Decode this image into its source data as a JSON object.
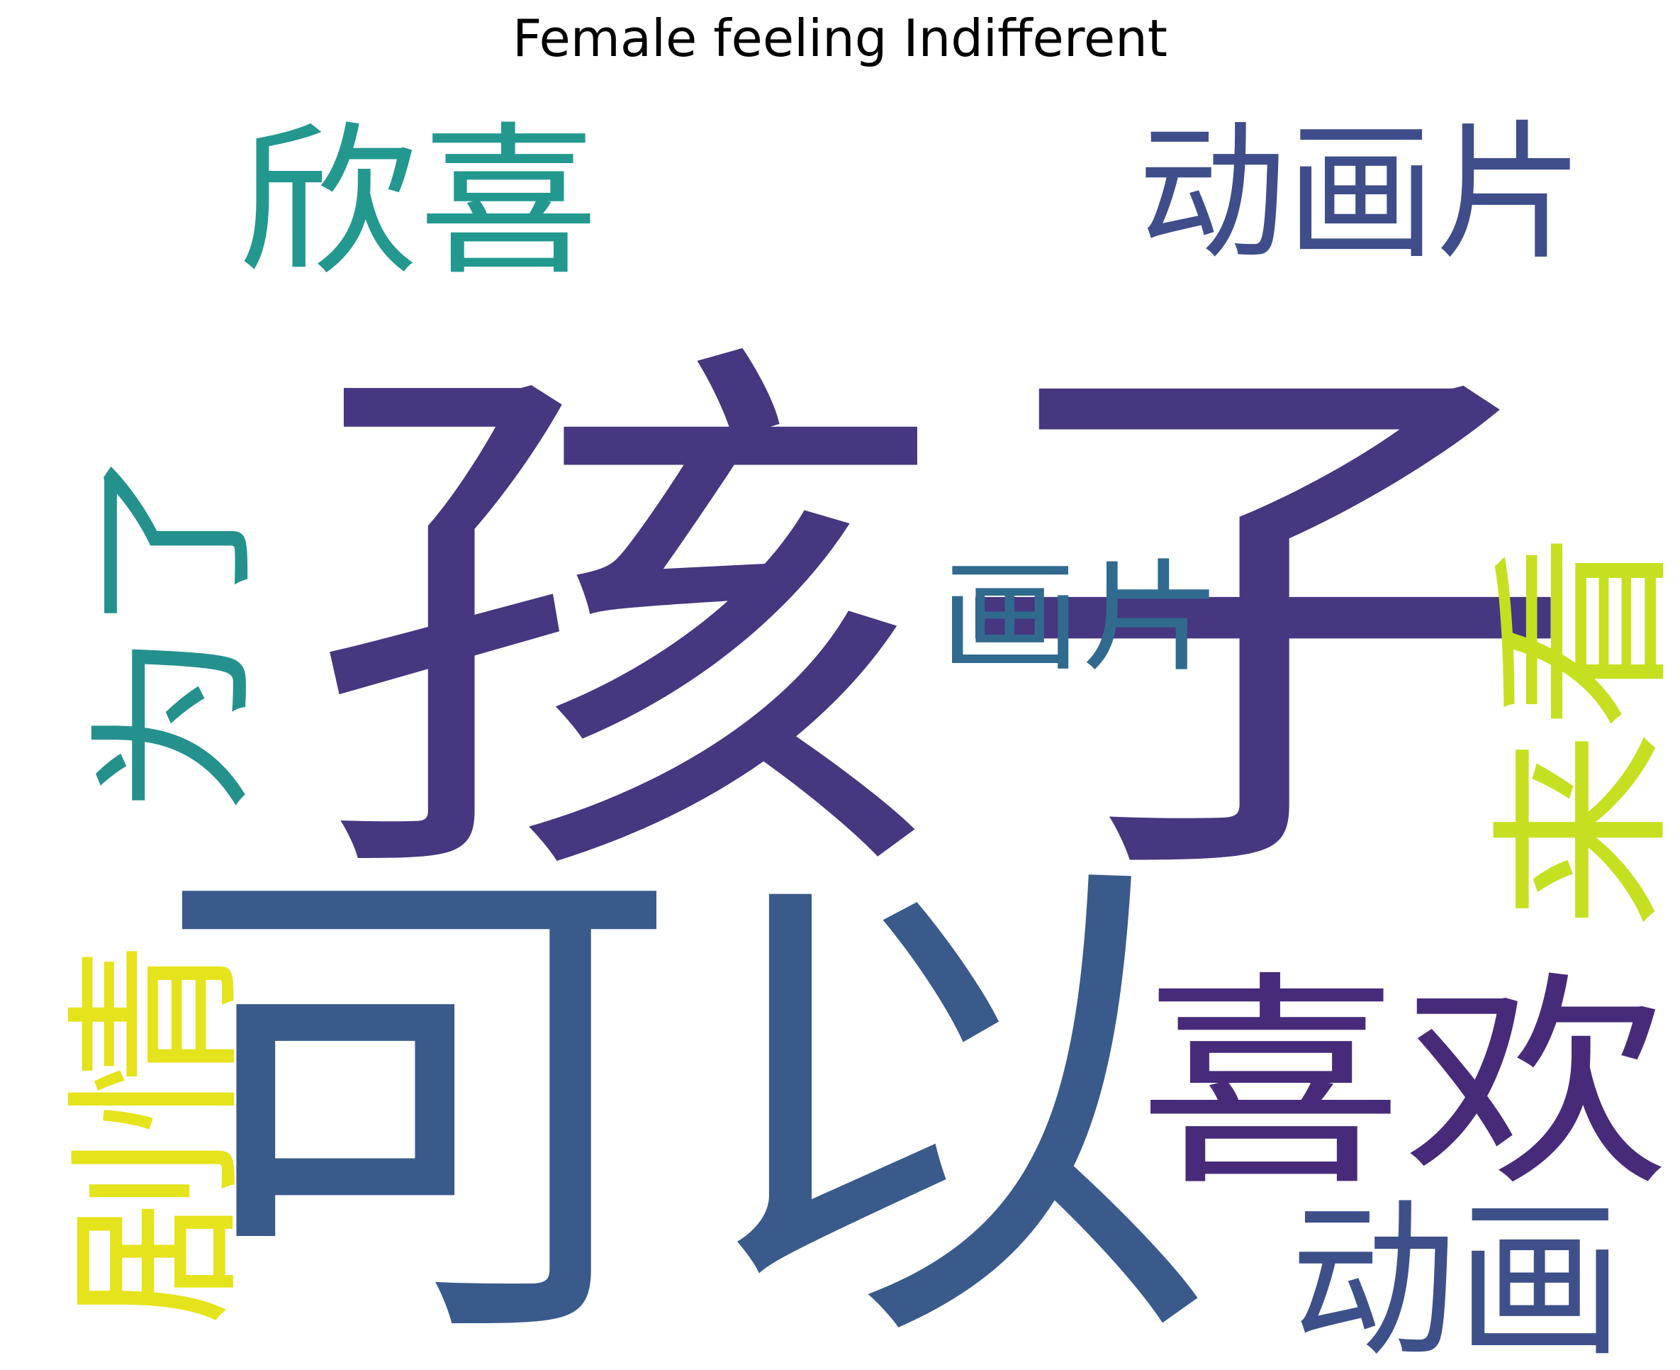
{
  "title": "Female feeling Indifferent",
  "words": [
    {
      "id": "haizi",
      "text": "孩子",
      "color": "#463780"
    },
    {
      "id": "keyi",
      "text": "可以",
      "color": "#3a5a8c"
    },
    {
      "id": "xihuan",
      "text": "喜欢",
      "color": "#472b7a"
    },
    {
      "id": "xinxi",
      "text": "欣喜",
      "color": "#23988e"
    },
    {
      "id": "donghuapian",
      "text": "动画片",
      "color": "#3f4e8a"
    },
    {
      "id": "huapian",
      "text": "画片",
      "color": "#306a8e"
    },
    {
      "id": "weile",
      "text": "为了",
      "color": "#24918d"
    },
    {
      "id": "laikan",
      "text": "来看",
      "color": "#c6e021"
    },
    {
      "id": "juqing",
      "text": "剧情",
      "color": "#e5e31b"
    },
    {
      "id": "donghua",
      "text": "动画",
      "color": "#3e508a"
    }
  ]
}
